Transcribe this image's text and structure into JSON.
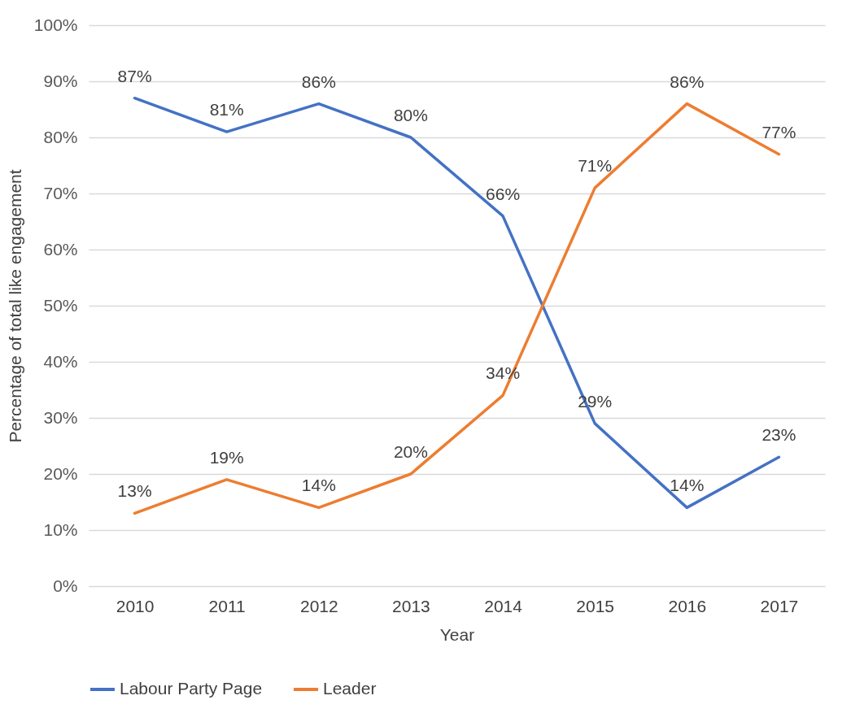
{
  "chart_data": {
    "type": "line",
    "xlabel": "Year",
    "ylabel": "Percentage of total like engagement",
    "categories": [
      "2010",
      "2011",
      "2012",
      "2013",
      "2014",
      "2015",
      "2016",
      "2017"
    ],
    "series": [
      {
        "name": "Labour Party Page",
        "color": "#4472c4",
        "values": [
          87,
          81,
          86,
          80,
          66,
          29,
          14,
          23
        ],
        "value_labels": [
          "87%",
          "81%",
          "86%",
          "80%",
          "66%",
          "29%",
          "14%",
          "23%"
        ]
      },
      {
        "name": "Leader",
        "color": "#ed7d31",
        "values": [
          13,
          19,
          14,
          20,
          34,
          71,
          86,
          77
        ],
        "value_labels": [
          "13%",
          "19%",
          "14%",
          "20%",
          "34%",
          "71%",
          "86%",
          "77%"
        ]
      }
    ],
    "ylim": [
      0,
      100
    ],
    "yticks": [
      {
        "value": 0,
        "label": "0%"
      },
      {
        "value": 10,
        "label": "10%"
      },
      {
        "value": 20,
        "label": "20%"
      },
      {
        "value": 30,
        "label": "30%"
      },
      {
        "value": 40,
        "label": "40%"
      },
      {
        "value": 50,
        "label": "50%"
      },
      {
        "value": 60,
        "label": "60%"
      },
      {
        "value": 70,
        "label": "70%"
      },
      {
        "value": 80,
        "label": "80%"
      },
      {
        "value": 90,
        "label": "90%"
      },
      {
        "value": 100,
        "label": "100%"
      }
    ],
    "grid": "y",
    "legend": "bottom",
    "marker": "none",
    "line_style": "solid"
  }
}
